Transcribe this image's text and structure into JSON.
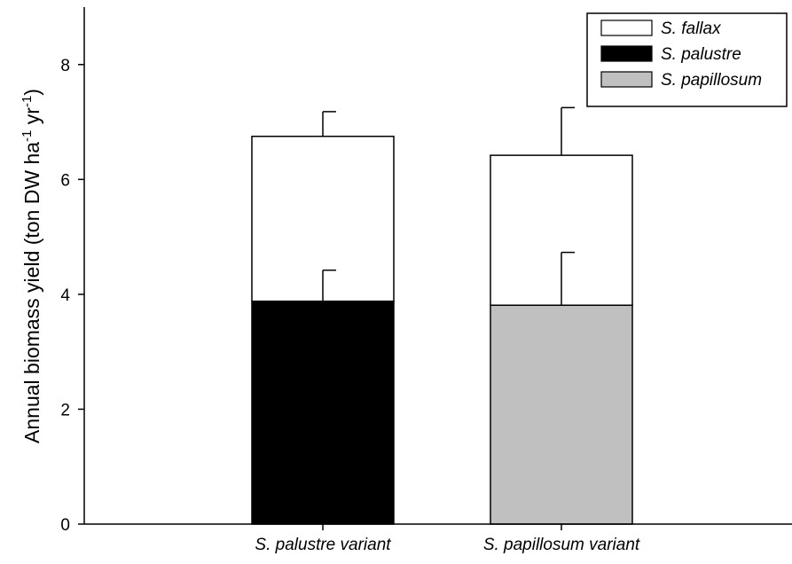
{
  "chart_data": {
    "type": "bar",
    "stacked": true,
    "categories": [
      "S. palustre variant",
      "S. papillosum variant"
    ],
    "series": [
      {
        "name": "S. fallax",
        "values": [
          2.87,
          2.61
        ],
        "error_plus": [
          0.43,
          0.83
        ],
        "color": "#ffffff"
      },
      {
        "name": "S. palustre",
        "values": [
          3.88,
          0
        ],
        "error_plus": [
          0.54,
          null
        ],
        "color": "#000000"
      },
      {
        "name": "S. papillosum",
        "values": [
          0,
          3.81
        ],
        "error_plus": [
          null,
          0.92
        ],
        "color": "#c0c0c0"
      }
    ],
    "totals": [
      6.75,
      6.42
    ],
    "ylabel_main": "Annual biomass yield (ton DW ha",
    "ylabel_sup1": "-1",
    "ylabel_mid": " yr",
    "ylabel_sup2": "-1",
    "ylabel_end": ")",
    "xlabel": "",
    "ylim": [
      0,
      9
    ],
    "yticks": [
      0,
      2,
      4,
      6,
      8
    ],
    "legend_position": "top-right",
    "grid": false
  }
}
